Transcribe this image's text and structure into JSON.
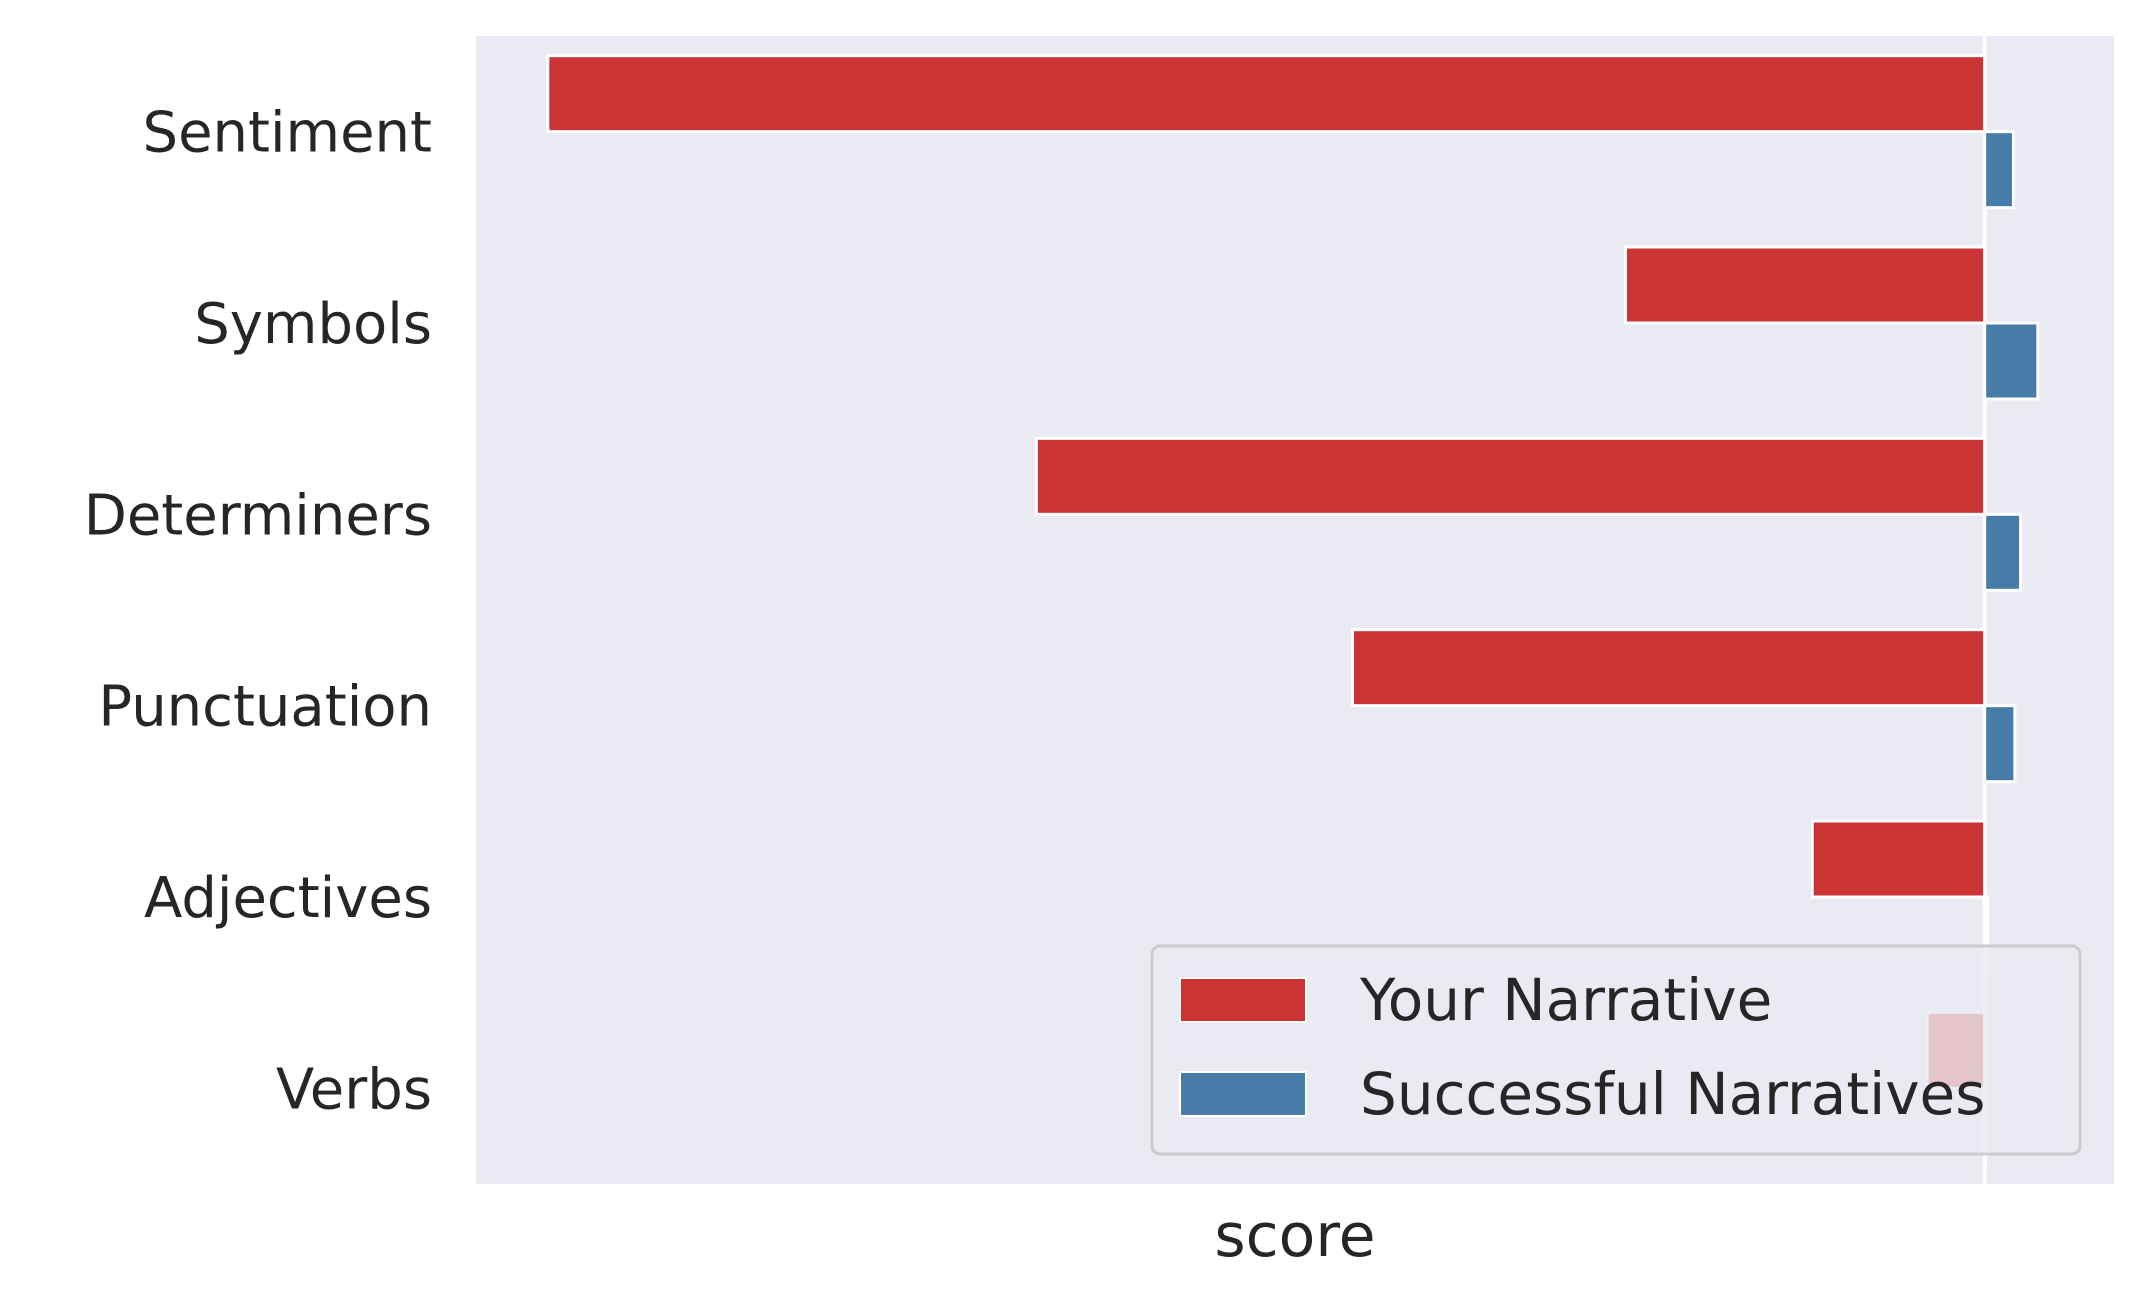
{
  "chart_data": {
    "type": "bar",
    "orientation": "horizontal",
    "categories": [
      "Sentiment",
      "Symbols",
      "Determiners",
      "Punctuation",
      "Adjectives",
      "Verbs"
    ],
    "series": [
      {
        "name": "Your Narrative",
        "color": "#cb3335",
        "values": [
          -1.0,
          -0.25,
          -0.66,
          -0.44,
          -0.12,
          -0.04
        ]
      },
      {
        "name": "Successful Narratives",
        "color": "#477ca8",
        "values": [
          0.02,
          0.037,
          0.025,
          0.021,
          0.002,
          0.0
        ]
      }
    ],
    "xlabel": "score",
    "ylabel": "",
    "xlim": [
      -1.05,
      0.09
    ],
    "x_ticks_shown": false,
    "grid": true,
    "background": "#eaeaf2",
    "legend": {
      "placement": "lower-right",
      "entries": [
        "Your Narrative",
        "Successful Narratives"
      ]
    }
  }
}
